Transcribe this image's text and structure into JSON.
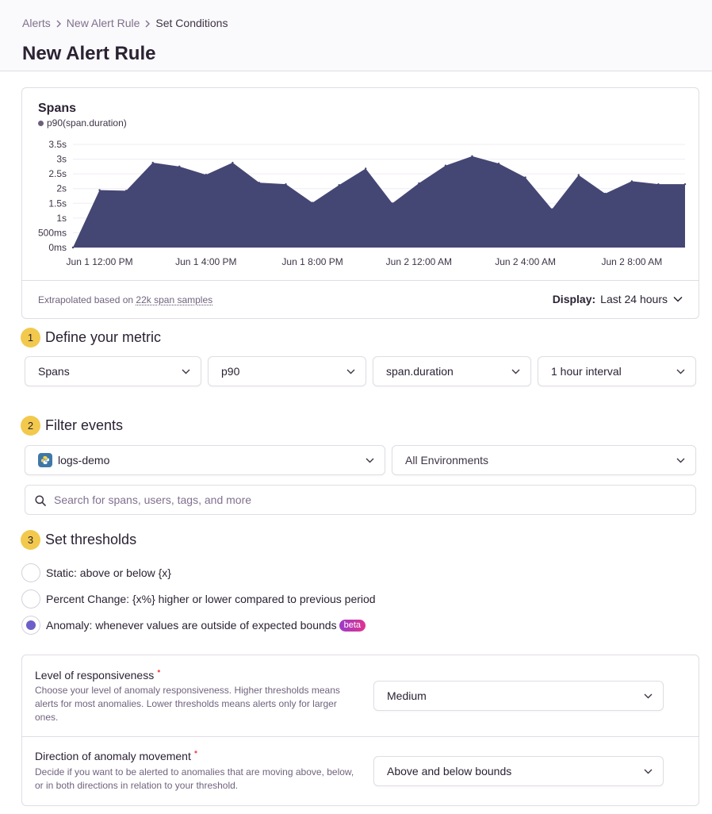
{
  "breadcrumb": {
    "items": [
      "Alerts",
      "New Alert Rule",
      "Set Conditions"
    ]
  },
  "page_title": "New Alert Rule",
  "chart": {
    "title": "Spans",
    "legend": "p90(span.duration)",
    "footer_prefix": "Extrapolated based on ",
    "footer_samples": "22k span samples",
    "display_label": "Display:",
    "display_value": "Last 24 hours"
  },
  "chart_data": {
    "type": "area",
    "title": "Spans",
    "series": [
      {
        "name": "p90(span.duration)",
        "x": [
          0,
          1,
          2,
          3,
          4,
          5,
          6,
          7,
          8,
          9,
          10,
          11,
          12,
          13,
          14,
          15,
          16,
          17,
          18,
          19,
          20,
          21,
          22,
          23
        ],
        "values": [
          0.0,
          1.95,
          1.93,
          2.88,
          2.75,
          2.47,
          2.88,
          2.2,
          2.15,
          1.52,
          2.12,
          2.68,
          1.5,
          2.18,
          2.78,
          3.1,
          2.85,
          2.38,
          1.3,
          2.46,
          1.83,
          2.25,
          2.15,
          2.15
        ],
        "color": "#444674"
      }
    ],
    "y_ticks": [
      "0ms",
      "500ms",
      "1s",
      "1.5s",
      "2s",
      "2.5s",
      "3s",
      "3.5s"
    ],
    "x_ticks": [
      "Jun 1 12:00 PM",
      "Jun 1 4:00 PM",
      "Jun 1 8:00 PM",
      "Jun 2 12:00 AM",
      "Jun 2 4:00 AM",
      "Jun 2 8:00 AM"
    ],
    "x_tick_positions": [
      1,
      5,
      9,
      13,
      17,
      21
    ],
    "ylim": [
      0,
      3.5
    ],
    "ylabel": "",
    "xlabel": "",
    "grid": true
  },
  "step1": {
    "number": "1",
    "title": "Define your metric",
    "dataset": "Spans",
    "aggregate": "p90",
    "field": "span.duration",
    "interval": "1 hour interval"
  },
  "step2": {
    "number": "2",
    "title": "Filter events",
    "project": "logs-demo",
    "environment": "All Environments",
    "search_placeholder": "Search for spans, users, tags, and more"
  },
  "step3": {
    "number": "3",
    "title": "Set thresholds",
    "options": [
      {
        "label": "Static: above or below {x}",
        "checked": false
      },
      {
        "label": "Percent Change: {x%} higher or lower compared to previous period",
        "checked": false
      },
      {
        "label": "Anomaly: whenever values are outside of expected bounds",
        "checked": true
      }
    ],
    "beta_badge": "beta"
  },
  "settings": {
    "responsiveness": {
      "label": "Level of responsiveness",
      "required_mark": "•",
      "help": "Choose your level of anomaly responsiveness. Higher thresholds means alerts for most anomalies. Lower thresholds means alerts only for larger ones.",
      "value": "Medium"
    },
    "direction": {
      "label": "Direction of anomaly movement",
      "required_mark": "•",
      "help": "Decide if you want to be alerted to anomalies that are moving above, below, or in both directions in relation to your threshold.",
      "value": "Above and below bounds"
    }
  },
  "colors": {
    "accent": "#6c5fc7",
    "step_badge": "#f2c94c",
    "chart_fill": "#444674",
    "beta_badge": "#c83da7"
  }
}
